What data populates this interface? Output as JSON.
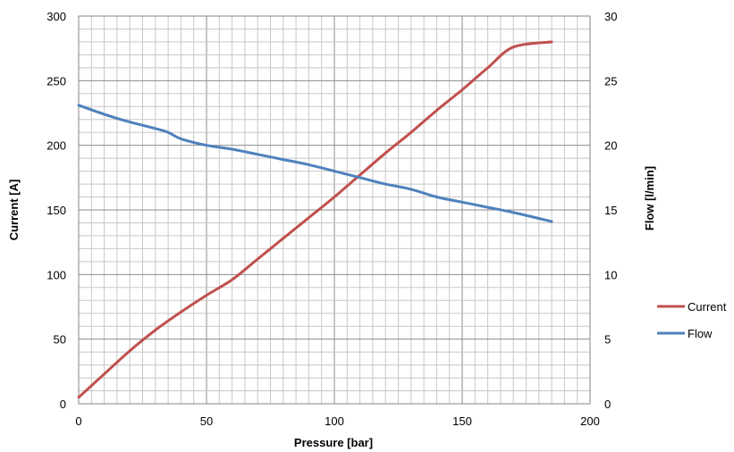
{
  "chart_data": {
    "type": "line",
    "xlabel": "Pressure [bar]",
    "ylabel_left": "Current [A]",
    "ylabel_right": "Flow [l/min]",
    "xlim": [
      0,
      200
    ],
    "ylim_left": [
      0,
      300
    ],
    "ylim_right": [
      0,
      30
    ],
    "x_ticks": [
      0,
      50,
      100,
      150,
      200
    ],
    "y_left_ticks": [
      0,
      50,
      100,
      150,
      200,
      250,
      300
    ],
    "y_right_ticks": [
      0,
      5,
      10,
      15,
      20,
      25,
      30
    ],
    "grid": true,
    "legend_position": "right",
    "series": [
      {
        "name": "Current",
        "axis": "left",
        "color": "#c0504d",
        "x": [
          0,
          10,
          20,
          30,
          40,
          50,
          60,
          70,
          80,
          90,
          100,
          110,
          120,
          130,
          140,
          150,
          160,
          170,
          185
        ],
        "y": [
          5,
          23,
          41,
          57,
          71,
          84,
          96,
          112,
          128,
          144,
          160,
          177,
          194,
          210,
          227,
          243,
          260,
          276,
          280
        ]
      },
      {
        "name": "Flow",
        "axis": "right",
        "color": "#4f81bd",
        "x": [
          0,
          10,
          20,
          30,
          35,
          40,
          50,
          60,
          70,
          80,
          90,
          100,
          110,
          120,
          130,
          140,
          150,
          160,
          170,
          185
        ],
        "y": [
          23.1,
          22.4,
          21.8,
          21.3,
          21.0,
          20.5,
          20.0,
          19.7,
          19.3,
          18.9,
          18.5,
          18.0,
          17.5,
          17.0,
          16.6,
          16.0,
          15.6,
          15.2,
          14.8,
          14.1
        ]
      }
    ]
  }
}
